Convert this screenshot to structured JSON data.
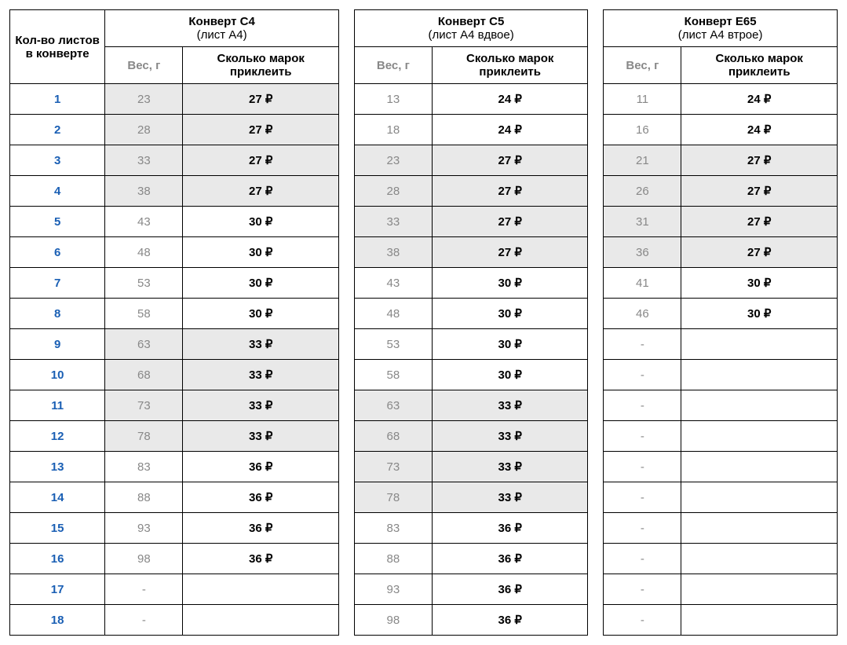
{
  "header": {
    "sheets_label": "Кол-во листов в конверте",
    "envelopes": [
      {
        "title": "Конверт C4",
        "subtitle": "(лист А4)"
      },
      {
        "title": "Конверт C5",
        "subtitle": "(лист А4 вдвое)"
      },
      {
        "title": "Конверт E65",
        "subtitle": "(лист А4 втрое)"
      }
    ],
    "weight_label": "Вес, г",
    "stamps_label": "Сколько марок приклеить"
  },
  "currency_symbol": "₽",
  "colors": {
    "shaded_bg": "#e9e9e9",
    "link_blue": "#1a5fb4",
    "grey_text": "#888888",
    "border": "#000000"
  },
  "rows": [
    {
      "n": "1",
      "c4": {
        "w": "23",
        "s": "27 ₽",
        "sh": true
      },
      "c5": {
        "w": "13",
        "s": "24 ₽",
        "sh": false
      },
      "e65": {
        "w": "11",
        "s": "24 ₽",
        "sh": false
      }
    },
    {
      "n": "2",
      "c4": {
        "w": "28",
        "s": "27 ₽",
        "sh": true
      },
      "c5": {
        "w": "18",
        "s": "24 ₽",
        "sh": false
      },
      "e65": {
        "w": "16",
        "s": "24 ₽",
        "sh": false
      }
    },
    {
      "n": "3",
      "c4": {
        "w": "33",
        "s": "27 ₽",
        "sh": true
      },
      "c5": {
        "w": "23",
        "s": "27 ₽",
        "sh": true
      },
      "e65": {
        "w": "21",
        "s": "27 ₽",
        "sh": true
      }
    },
    {
      "n": "4",
      "c4": {
        "w": "38",
        "s": "27 ₽",
        "sh": true
      },
      "c5": {
        "w": "28",
        "s": "27 ₽",
        "sh": true
      },
      "e65": {
        "w": "26",
        "s": "27 ₽",
        "sh": true
      }
    },
    {
      "n": "5",
      "c4": {
        "w": "43",
        "s": "30 ₽",
        "sh": false
      },
      "c5": {
        "w": "33",
        "s": "27 ₽",
        "sh": true
      },
      "e65": {
        "w": "31",
        "s": "27 ₽",
        "sh": true
      }
    },
    {
      "n": "6",
      "c4": {
        "w": "48",
        "s": "30 ₽",
        "sh": false
      },
      "c5": {
        "w": "38",
        "s": "27 ₽",
        "sh": true
      },
      "e65": {
        "w": "36",
        "s": "27 ₽",
        "sh": true
      }
    },
    {
      "n": "7",
      "c4": {
        "w": "53",
        "s": "30 ₽",
        "sh": false
      },
      "c5": {
        "w": "43",
        "s": "30 ₽",
        "sh": false
      },
      "e65": {
        "w": "41",
        "s": "30 ₽",
        "sh": false
      }
    },
    {
      "n": "8",
      "c4": {
        "w": "58",
        "s": "30 ₽",
        "sh": false
      },
      "c5": {
        "w": "48",
        "s": "30 ₽",
        "sh": false
      },
      "e65": {
        "w": "46",
        "s": "30 ₽",
        "sh": false
      }
    },
    {
      "n": "9",
      "c4": {
        "w": "63",
        "s": "33 ₽",
        "sh": true
      },
      "c5": {
        "w": "53",
        "s": "30 ₽",
        "sh": false
      },
      "e65": {
        "w": "-",
        "s": "",
        "sh": false
      }
    },
    {
      "n": "10",
      "c4": {
        "w": "68",
        "s": "33 ₽",
        "sh": true
      },
      "c5": {
        "w": "58",
        "s": "30 ₽",
        "sh": false
      },
      "e65": {
        "w": "-",
        "s": "",
        "sh": false
      }
    },
    {
      "n": "11",
      "c4": {
        "w": "73",
        "s": "33 ₽",
        "sh": true
      },
      "c5": {
        "w": "63",
        "s": "33 ₽",
        "sh": true
      },
      "e65": {
        "w": "-",
        "s": "",
        "sh": false
      }
    },
    {
      "n": "12",
      "c4": {
        "w": "78",
        "s": "33 ₽",
        "sh": true
      },
      "c5": {
        "w": "68",
        "s": "33 ₽",
        "sh": true
      },
      "e65": {
        "w": "-",
        "s": "",
        "sh": false
      }
    },
    {
      "n": "13",
      "c4": {
        "w": "83",
        "s": "36 ₽",
        "sh": false
      },
      "c5": {
        "w": "73",
        "s": "33 ₽",
        "sh": true
      },
      "e65": {
        "w": "-",
        "s": "",
        "sh": false
      }
    },
    {
      "n": "14",
      "c4": {
        "w": "88",
        "s": "36 ₽",
        "sh": false
      },
      "c5": {
        "w": "78",
        "s": "33 ₽",
        "sh": true
      },
      "e65": {
        "w": "-",
        "s": "",
        "sh": false
      }
    },
    {
      "n": "15",
      "c4": {
        "w": "93",
        "s": "36 ₽",
        "sh": false
      },
      "c5": {
        "w": "83",
        "s": "36 ₽",
        "sh": false
      },
      "e65": {
        "w": "-",
        "s": "",
        "sh": false
      }
    },
    {
      "n": "16",
      "c4": {
        "w": "98",
        "s": "36 ₽",
        "sh": false
      },
      "c5": {
        "w": "88",
        "s": "36 ₽",
        "sh": false
      },
      "e65": {
        "w": "-",
        "s": "",
        "sh": false
      }
    },
    {
      "n": "17",
      "c4": {
        "w": "-",
        "s": "",
        "sh": false
      },
      "c5": {
        "w": "93",
        "s": "36 ₽",
        "sh": false
      },
      "e65": {
        "w": "-",
        "s": "",
        "sh": false
      }
    },
    {
      "n": "18",
      "c4": {
        "w": "-",
        "s": "",
        "sh": false
      },
      "c5": {
        "w": "98",
        "s": "36 ₽",
        "sh": false
      },
      "e65": {
        "w": "-",
        "s": "",
        "sh": false
      }
    }
  ]
}
